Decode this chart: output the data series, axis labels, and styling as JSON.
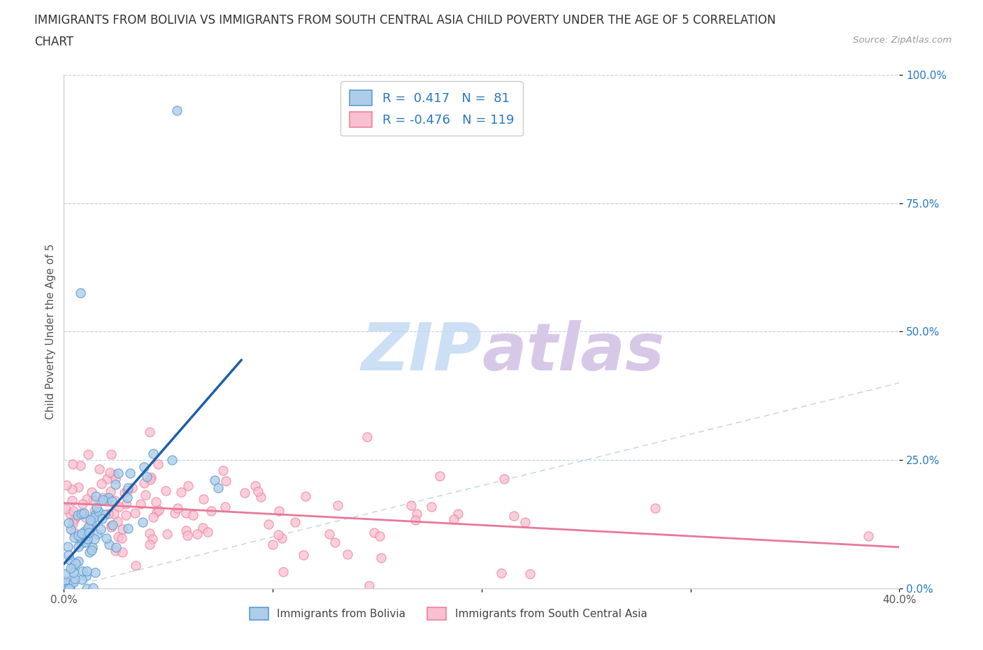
{
  "title_line1": "IMMIGRANTS FROM BOLIVIA VS IMMIGRANTS FROM SOUTH CENTRAL ASIA CHILD POVERTY UNDER THE AGE OF 5 CORRELATION",
  "title_line2": "CHART",
  "source": "Source: ZipAtlas.com",
  "ylabel": "Child Poverty Under the Age of 5",
  "bolivia_color_edge": "#5b9bd5",
  "bolivia_color_fill": "#aecde8",
  "asia_color_edge": "#f080a0",
  "asia_color_fill": "#f8c0d0",
  "trendline_bolivia_color": "#1f5fa6",
  "trendline_asia_color": "#e8789a",
  "diagonal_color": "#b8cfe4",
  "watermark_zip_color": "#c8ddf0",
  "watermark_atlas_color": "#d8c8e8",
  "legend_text_color": "#2878c8",
  "R_bolivia": 0.417,
  "N_bolivia": 81,
  "R_asia": -0.476,
  "N_asia": 119,
  "xlim": [
    0,
    0.4
  ],
  "ylim": [
    0,
    1.0
  ],
  "yticks": [
    0.0,
    0.25,
    0.5,
    0.75,
    1.0
  ],
  "ytick_labels": [
    "0.0%",
    "25.0%",
    "50.0%",
    "75.0%",
    "100.0%"
  ],
  "xticks": [
    0.0,
    0.1,
    0.2,
    0.3,
    0.4
  ],
  "xtick_labels": [
    "0.0%",
    "",
    "",
    "",
    "40.0%"
  ],
  "grid_color": "#c0d4e8",
  "background_color": "#ffffff",
  "legend_label_bolivia": "Immigrants from Bolivia",
  "legend_label_asia": "Immigrants from South Central Asia",
  "title_fontsize": 12,
  "axis_label_fontsize": 11,
  "tick_fontsize": 11,
  "legend_fontsize": 11
}
